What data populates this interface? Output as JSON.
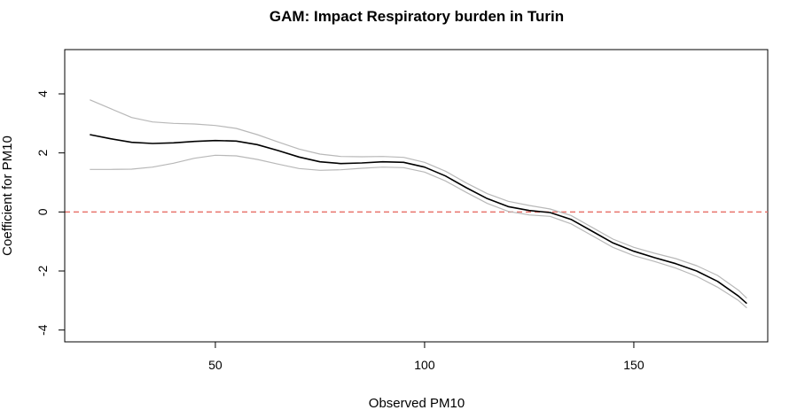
{
  "chart_data": {
    "type": "line",
    "title": "GAM: Impact Respiratory burden in Turin",
    "xlabel": "Observed PM10",
    "ylabel": "Coefficient for PM10",
    "xlim": [
      14,
      182
    ],
    "ylim": [
      -4.4,
      5.5
    ],
    "x_ticks": [
      50,
      100,
      150
    ],
    "x_tick_labels": [
      "50",
      "100",
      "150"
    ],
    "y_ticks": [
      -4,
      -2,
      0,
      2,
      4
    ],
    "y_tick_labels": [
      "-4",
      "-2",
      "0",
      "2",
      "4"
    ],
    "grid": false,
    "legend": "none",
    "reference_line": {
      "y": 0,
      "color": "#e8736c",
      "style": "dashed"
    },
    "colors": {
      "estimate": "#000000",
      "bands": "#b8b8b8"
    },
    "series": [
      {
        "role": "estimate",
        "x": [
          20,
          25,
          30,
          35,
          40,
          45,
          50,
          55,
          60,
          65,
          70,
          75,
          80,
          85,
          90,
          95,
          100,
          105,
          110,
          115,
          120,
          125,
          130,
          135,
          140,
          145,
          150,
          155,
          160,
          165,
          170,
          175,
          177
        ],
        "values": [
          2.62,
          2.48,
          2.36,
          2.32,
          2.34,
          2.39,
          2.42,
          2.4,
          2.28,
          2.08,
          1.86,
          1.7,
          1.64,
          1.66,
          1.7,
          1.68,
          1.52,
          1.22,
          0.82,
          0.45,
          0.18,
          0.05,
          -0.02,
          -0.25,
          -0.65,
          -1.05,
          -1.33,
          -1.55,
          -1.75,
          -2.0,
          -2.35,
          -2.85,
          -3.1
        ]
      },
      {
        "role": "upper-band",
        "x": [
          20,
          25,
          30,
          35,
          40,
          45,
          50,
          55,
          60,
          65,
          70,
          75,
          80,
          85,
          90,
          95,
          100,
          105,
          110,
          115,
          120,
          125,
          130,
          135,
          140,
          145,
          150,
          155,
          160,
          165,
          170,
          175,
          177
        ],
        "values": [
          3.8,
          3.5,
          3.2,
          3.05,
          3.0,
          2.98,
          2.93,
          2.83,
          2.62,
          2.37,
          2.13,
          1.96,
          1.88,
          1.87,
          1.88,
          1.85,
          1.68,
          1.38,
          0.98,
          0.62,
          0.36,
          0.22,
          0.1,
          -0.12,
          -0.52,
          -0.92,
          -1.2,
          -1.4,
          -1.58,
          -1.82,
          -2.15,
          -2.65,
          -2.92
        ]
      },
      {
        "role": "lower-band",
        "x": [
          20,
          25,
          30,
          35,
          40,
          45,
          50,
          55,
          60,
          65,
          70,
          75,
          80,
          85,
          90,
          95,
          100,
          105,
          110,
          115,
          120,
          125,
          130,
          135,
          140,
          145,
          150,
          155,
          160,
          165,
          170,
          175,
          177
        ],
        "values": [
          1.44,
          1.44,
          1.45,
          1.52,
          1.65,
          1.82,
          1.92,
          1.9,
          1.78,
          1.62,
          1.47,
          1.41,
          1.43,
          1.48,
          1.52,
          1.5,
          1.35,
          1.05,
          0.66,
          0.29,
          0.02,
          -0.1,
          -0.15,
          -0.4,
          -0.8,
          -1.2,
          -1.48,
          -1.68,
          -1.9,
          -2.18,
          -2.55,
          -3.0,
          -3.25
        ]
      }
    ]
  }
}
